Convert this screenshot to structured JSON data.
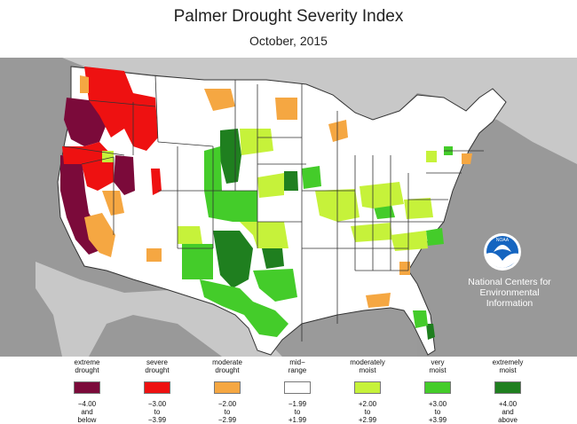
{
  "title": "Palmer Drought Severity Index",
  "subtitle": "October, 2015",
  "credit": "National Centers for\nEnvironmental\nInformation",
  "colors": {
    "background_ocean": "#999999",
    "land_outside": "#c8c8c8",
    "us_land": "#ffffff",
    "state_border": "#333333",
    "division_border": "#9a9a9a",
    "extreme_drought": "#7b0a3a",
    "severe_drought": "#ee1111",
    "moderate_drought": "#f5a742",
    "mid_range": "#ffffff",
    "moderately_moist": "#c6f23a",
    "very_moist": "#44cc2a",
    "extremely_moist": "#1f7f1f"
  },
  "legend": [
    {
      "label": "extreme\ndrought",
      "range": "−4.00\nand\nbelow",
      "color": "#7b0a3a"
    },
    {
      "label": "severe\ndrought",
      "range": "−3.00\nto\n−3.99",
      "color": "#ee1111"
    },
    {
      "label": "moderate\ndrought",
      "range": "−2.00\nto\n−2.99",
      "color": "#f5a742"
    },
    {
      "label": "mid−\nrange",
      "range": "−1.99\nto\n+1.99",
      "color": "#ffffff"
    },
    {
      "label": "moderately\nmoist",
      "range": "+2.00\nto\n+2.99",
      "color": "#c6f23a"
    },
    {
      "label": "very\nmoist",
      "range": "+3.00\nto\n+3.99",
      "color": "#44cc2a"
    },
    {
      "label": "extremely\nmoist",
      "range": "+4.00\nand\nabove",
      "color": "#1f7f1f"
    }
  ]
}
